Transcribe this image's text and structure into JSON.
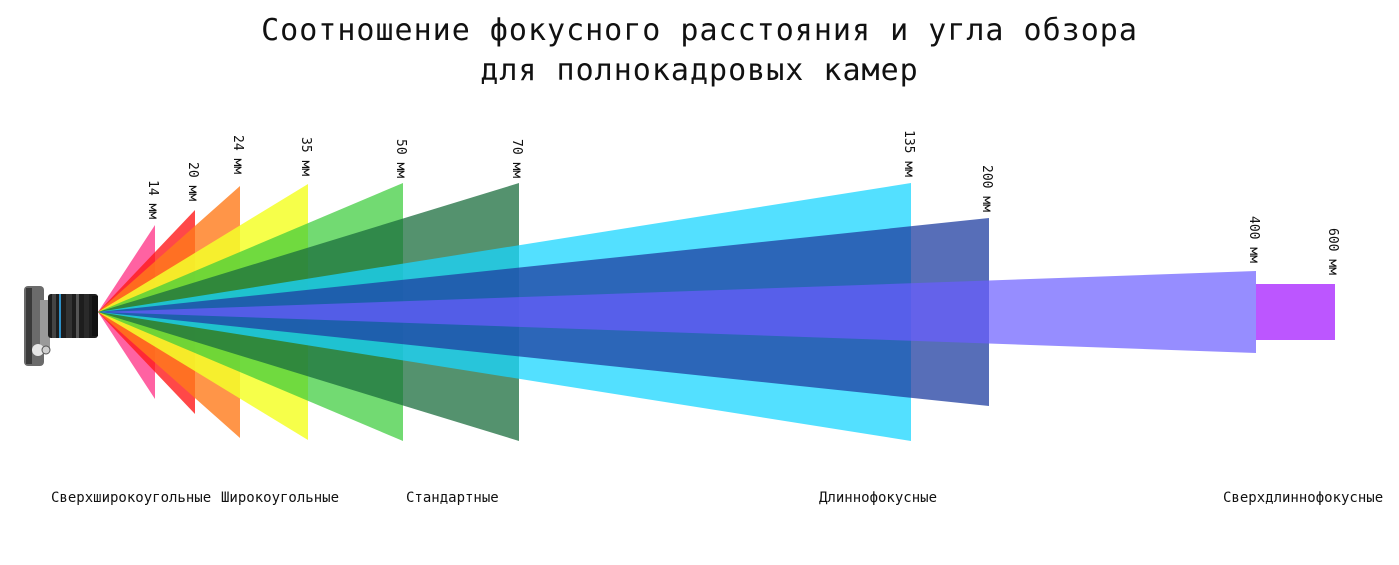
{
  "title_line1": "Соотношение фокусного расстояния и угла обзора",
  "title_line2": "для полнокадровых камер",
  "focal_lengths": [
    {
      "label": "14 мм",
      "color": "#ff1f7a",
      "opacity": 0.7
    },
    {
      "label": "20 мм",
      "color": "#ff1a1a",
      "opacity": 0.8
    },
    {
      "label": "24 мм",
      "color": "#ff7a1a",
      "opacity": 0.8
    },
    {
      "label": "35 мм",
      "color": "#f4ff2a",
      "opacity": 0.85
    },
    {
      "label": "50 мм",
      "color": "#3ccc3c",
      "opacity": 0.72
    },
    {
      "label": "70 мм",
      "color": "#1b6e3e",
      "opacity": 0.75
    },
    {
      "label": "135 мм",
      "color": "#1ad6ff",
      "opacity": 0.75
    },
    {
      "label": "200 мм",
      "color": "#1f3ea0",
      "opacity": 0.75
    },
    {
      "label": "400 мм",
      "color": "#6a5cff",
      "opacity": 0.7
    },
    {
      "label": "600 мм",
      "color": "#b84dff",
      "opacity": 0.95
    }
  ],
  "categories": [
    {
      "label": "Сверхширокоугольные"
    },
    {
      "label": "Широкоугольные"
    },
    {
      "label": "Стандартные"
    },
    {
      "label": "Длиннофокусные"
    },
    {
      "label": "Сверхдлиннофокусные"
    }
  ],
  "camera_icon": "camera-icon"
}
